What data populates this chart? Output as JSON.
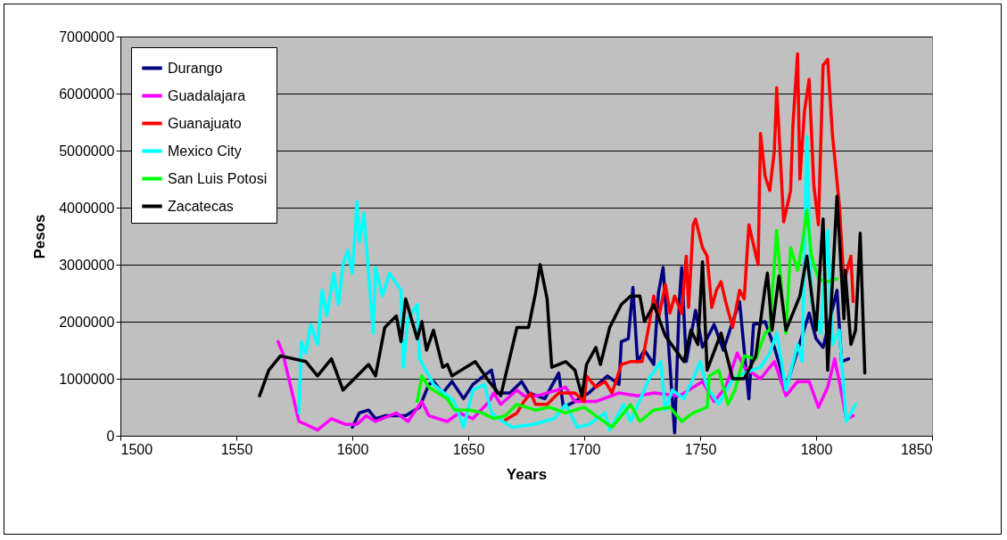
{
  "chart_data": {
    "type": "line",
    "xlabel": "Years",
    "ylabel": "Pesos",
    "xlim": [
      1500,
      1850
    ],
    "xticks": [
      1500,
      1550,
      1600,
      1650,
      1700,
      1750,
      1800,
      1850
    ],
    "ylim": [
      0,
      7000000
    ],
    "yticks": [
      0,
      1000000,
      2000000,
      3000000,
      4000000,
      5000000,
      6000000,
      7000000
    ],
    "grid": "y",
    "legend": "top left",
    "line_style": "solid",
    "marker": "none",
    "series": [
      {
        "name": "Durango",
        "color": "#000080",
        "x": [
          1600,
          1603,
          1607,
          1610,
          1614,
          1623,
          1629,
          1633,
          1635,
          1639,
          1643,
          1648,
          1652,
          1660,
          1662,
          1668,
          1673,
          1676,
          1683,
          1689,
          1691,
          1696,
          1702,
          1710,
          1715,
          1716,
          1719,
          1721,
          1723,
          1726,
          1730,
          1732,
          1734,
          1736,
          1739,
          1741,
          1742,
          1744,
          1748,
          1751,
          1756,
          1760,
          1764,
          1767,
          1771,
          1773,
          1778,
          1782,
          1787,
          1792,
          1797,
          1800,
          1803,
          1809,
          1811,
          1814
        ],
        "values": [
          150000,
          400000,
          450000,
          300000,
          350000,
          350000,
          500000,
          900000,
          950000,
          750000,
          950000,
          650000,
          900000,
          1150000,
          750000,
          750000,
          950000,
          750000,
          650000,
          1100000,
          500000,
          600000,
          750000,
          1050000,
          900000,
          1650000,
          1700000,
          2600000,
          1300000,
          1500000,
          1250000,
          2500000,
          2950000,
          1800000,
          50000,
          2350000,
          2950000,
          1300000,
          2200000,
          1550000,
          1950000,
          1500000,
          2000000,
          2350000,
          650000,
          1950000,
          2000000,
          1550000,
          850000,
          1500000,
          2150000,
          1700000,
          1550000,
          2550000,
          1300000,
          1350000
        ]
      },
      {
        "name": "Guadalajara",
        "color": "#ff00ff",
        "x": [
          1568,
          1570,
          1577,
          1580,
          1585,
          1591,
          1597,
          1602,
          1606,
          1610,
          1619,
          1624,
          1630,
          1633,
          1641,
          1646,
          1652,
          1659,
          1661,
          1664,
          1671,
          1674,
          1680,
          1688,
          1692,
          1696,
          1705,
          1715,
          1723,
          1730,
          1741,
          1751,
          1756,
          1761,
          1766,
          1769,
          1776,
          1782,
          1787,
          1792,
          1797,
          1801,
          1805,
          1808,
          1810,
          1813,
          1816
        ],
        "values": [
          1650000,
          1450000,
          250000,
          200000,
          100000,
          300000,
          200000,
          200000,
          350000,
          250000,
          400000,
          250000,
          600000,
          350000,
          250000,
          400000,
          300000,
          600000,
          750000,
          550000,
          800000,
          700000,
          700000,
          800000,
          850000,
          600000,
          600000,
          750000,
          700000,
          750000,
          700000,
          950000,
          600000,
          850000,
          1450000,
          1200000,
          1000000,
          1300000,
          700000,
          950000,
          950000,
          500000,
          850000,
          1350000,
          950000,
          300000,
          350000
        ]
      },
      {
        "name": "Guanajuato",
        "color": "#ff0000",
        "x": [
          1665,
          1671,
          1674,
          1677,
          1679,
          1684,
          1689,
          1696,
          1700,
          1701,
          1705,
          1709,
          1712,
          1716,
          1720,
          1725,
          1728,
          1730,
          1732,
          1735,
          1737,
          1739,
          1742,
          1744,
          1745,
          1747,
          1748,
          1751,
          1753,
          1755,
          1757,
          1759,
          1761,
          1764,
          1767,
          1769,
          1771,
          1775,
          1776,
          1778,
          1780,
          1782,
          1783,
          1785,
          1786,
          1789,
          1790,
          1792,
          1793,
          1795,
          1797,
          1799,
          1801,
          1803,
          1805,
          1807,
          1810,
          1812,
          1815,
          1816
        ],
        "values": [
          250000,
          400000,
          600000,
          750000,
          550000,
          550000,
          750000,
          750000,
          600000,
          1050000,
          850000,
          950000,
          750000,
          1250000,
          1300000,
          1300000,
          1950000,
          2450000,
          2050000,
          2650000,
          2150000,
          2450000,
          2150000,
          3150000,
          2250000,
          3700000,
          3800000,
          3300000,
          3150000,
          2250000,
          2550000,
          2700000,
          2350000,
          1900000,
          2550000,
          2400000,
          3700000,
          3000000,
          5300000,
          4550000,
          4300000,
          5000000,
          6100000,
          4550000,
          3750000,
          4300000,
          5450000,
          6700000,
          4500000,
          5700000,
          6250000,
          4400000,
          3700000,
          6500000,
          6600000,
          5300000,
          4050000,
          2700000,
          3150000,
          2350000
        ]
      },
      {
        "name": "Mexico City",
        "color": "#00ffff",
        "x": [
          1577,
          1578,
          1580,
          1582,
          1585,
          1587,
          1589,
          1592,
          1594,
          1596,
          1598,
          1600,
          1602,
          1603,
          1605,
          1609,
          1610,
          1613,
          1616,
          1621,
          1622,
          1624,
          1628,
          1629,
          1635,
          1644,
          1648,
          1652,
          1657,
          1660,
          1665,
          1669,
          1678,
          1687,
          1692,
          1697,
          1702,
          1709,
          1711,
          1717,
          1720,
          1728,
          1733,
          1735,
          1738,
          1743,
          1748,
          1750,
          1753,
          1758,
          1764,
          1769,
          1776,
          1780,
          1783,
          1787,
          1792,
          1794,
          1796,
          1798,
          1802,
          1805,
          1807,
          1810,
          1813,
          1817
        ],
        "values": [
          400000,
          1650000,
          1450000,
          1950000,
          1600000,
          2550000,
          2100000,
          2850000,
          2300000,
          3000000,
          3250000,
          2850000,
          4100000,
          3400000,
          3900000,
          1800000,
          2950000,
          2450000,
          2850000,
          2550000,
          1200000,
          2050000,
          2300000,
          1350000,
          900000,
          600000,
          150000,
          800000,
          900000,
          400000,
          250000,
          150000,
          200000,
          300000,
          550000,
          150000,
          200000,
          400000,
          100000,
          550000,
          250000,
          1000000,
          1300000,
          450000,
          800000,
          650000,
          1100000,
          1300000,
          850000,
          550000,
          1000000,
          1100000,
          1200000,
          1450000,
          1800000,
          800000,
          1600000,
          1300000,
          5250000,
          2350000,
          1800000,
          3600000,
          1600000,
          1850000,
          250000,
          550000
        ]
      },
      {
        "name": "San Luis Potosi",
        "color": "#00ff00",
        "x": [
          1628,
          1630,
          1633,
          1641,
          1644,
          1651,
          1656,
          1661,
          1666,
          1671,
          1679,
          1685,
          1692,
          1700,
          1705,
          1712,
          1715,
          1720,
          1724,
          1730,
          1737,
          1742,
          1747,
          1753,
          1754,
          1758,
          1762,
          1765,
          1769,
          1774,
          1778,
          1780,
          1783,
          1785,
          1787,
          1789,
          1792,
          1794,
          1796,
          1798,
          1801,
          1805,
          1809
        ],
        "values": [
          600000,
          1050000,
          850000,
          650000,
          450000,
          450000,
          400000,
          300000,
          350000,
          550000,
          450000,
          500000,
          400000,
          500000,
          350000,
          150000,
          300000,
          550000,
          250000,
          450000,
          500000,
          250000,
          400000,
          500000,
          1050000,
          1150000,
          550000,
          800000,
          1400000,
          1350000,
          1800000,
          1850000,
          3600000,
          2600000,
          1800000,
          3300000,
          2900000,
          3350000,
          3950000,
          3150000,
          2750000,
          2700000,
          2750000
        ]
      },
      {
        "name": "Zacatecas",
        "color": "#000000",
        "x": [
          1560,
          1564,
          1569,
          1580,
          1585,
          1591,
          1596,
          1607,
          1610,
          1614,
          1619,
          1621,
          1623,
          1628,
          1630,
          1632,
          1635,
          1639,
          1641,
          1643,
          1653,
          1659,
          1664,
          1671,
          1676,
          1679,
          1681,
          1684,
          1686,
          1692,
          1696,
          1699,
          1701,
          1705,
          1707,
          1711,
          1716,
          1720,
          1724,
          1726,
          1730,
          1735,
          1743,
          1746,
          1749,
          1751,
          1753,
          1759,
          1764,
          1769,
          1774,
          1778,
          1779,
          1781,
          1784,
          1787,
          1793,
          1796,
          1800,
          1803,
          1805,
          1809,
          1812,
          1812.5,
          1815,
          1817,
          1819,
          1821
        ],
        "values": [
          700000,
          1150000,
          1400000,
          1300000,
          1050000,
          1350000,
          800000,
          1250000,
          1050000,
          1900000,
          2100000,
          1650000,
          2400000,
          1700000,
          2000000,
          1500000,
          1850000,
          1200000,
          1250000,
          1050000,
          1300000,
          950000,
          700000,
          1900000,
          1900000,
          2500000,
          3000000,
          2400000,
          1200000,
          1300000,
          1150000,
          700000,
          1250000,
          1550000,
          1250000,
          1900000,
          2300000,
          2450000,
          2450000,
          2000000,
          2300000,
          1750000,
          1300000,
          1850000,
          1600000,
          3050000,
          1150000,
          1800000,
          1000000,
          1000000,
          1400000,
          2600000,
          2850000,
          1850000,
          2800000,
          1850000,
          2450000,
          3150000,
          1850000,
          3800000,
          1150000,
          4200000,
          2050000,
          2900000,
          1600000,
          1850000,
          3550000,
          1100000
        ]
      }
    ]
  }
}
